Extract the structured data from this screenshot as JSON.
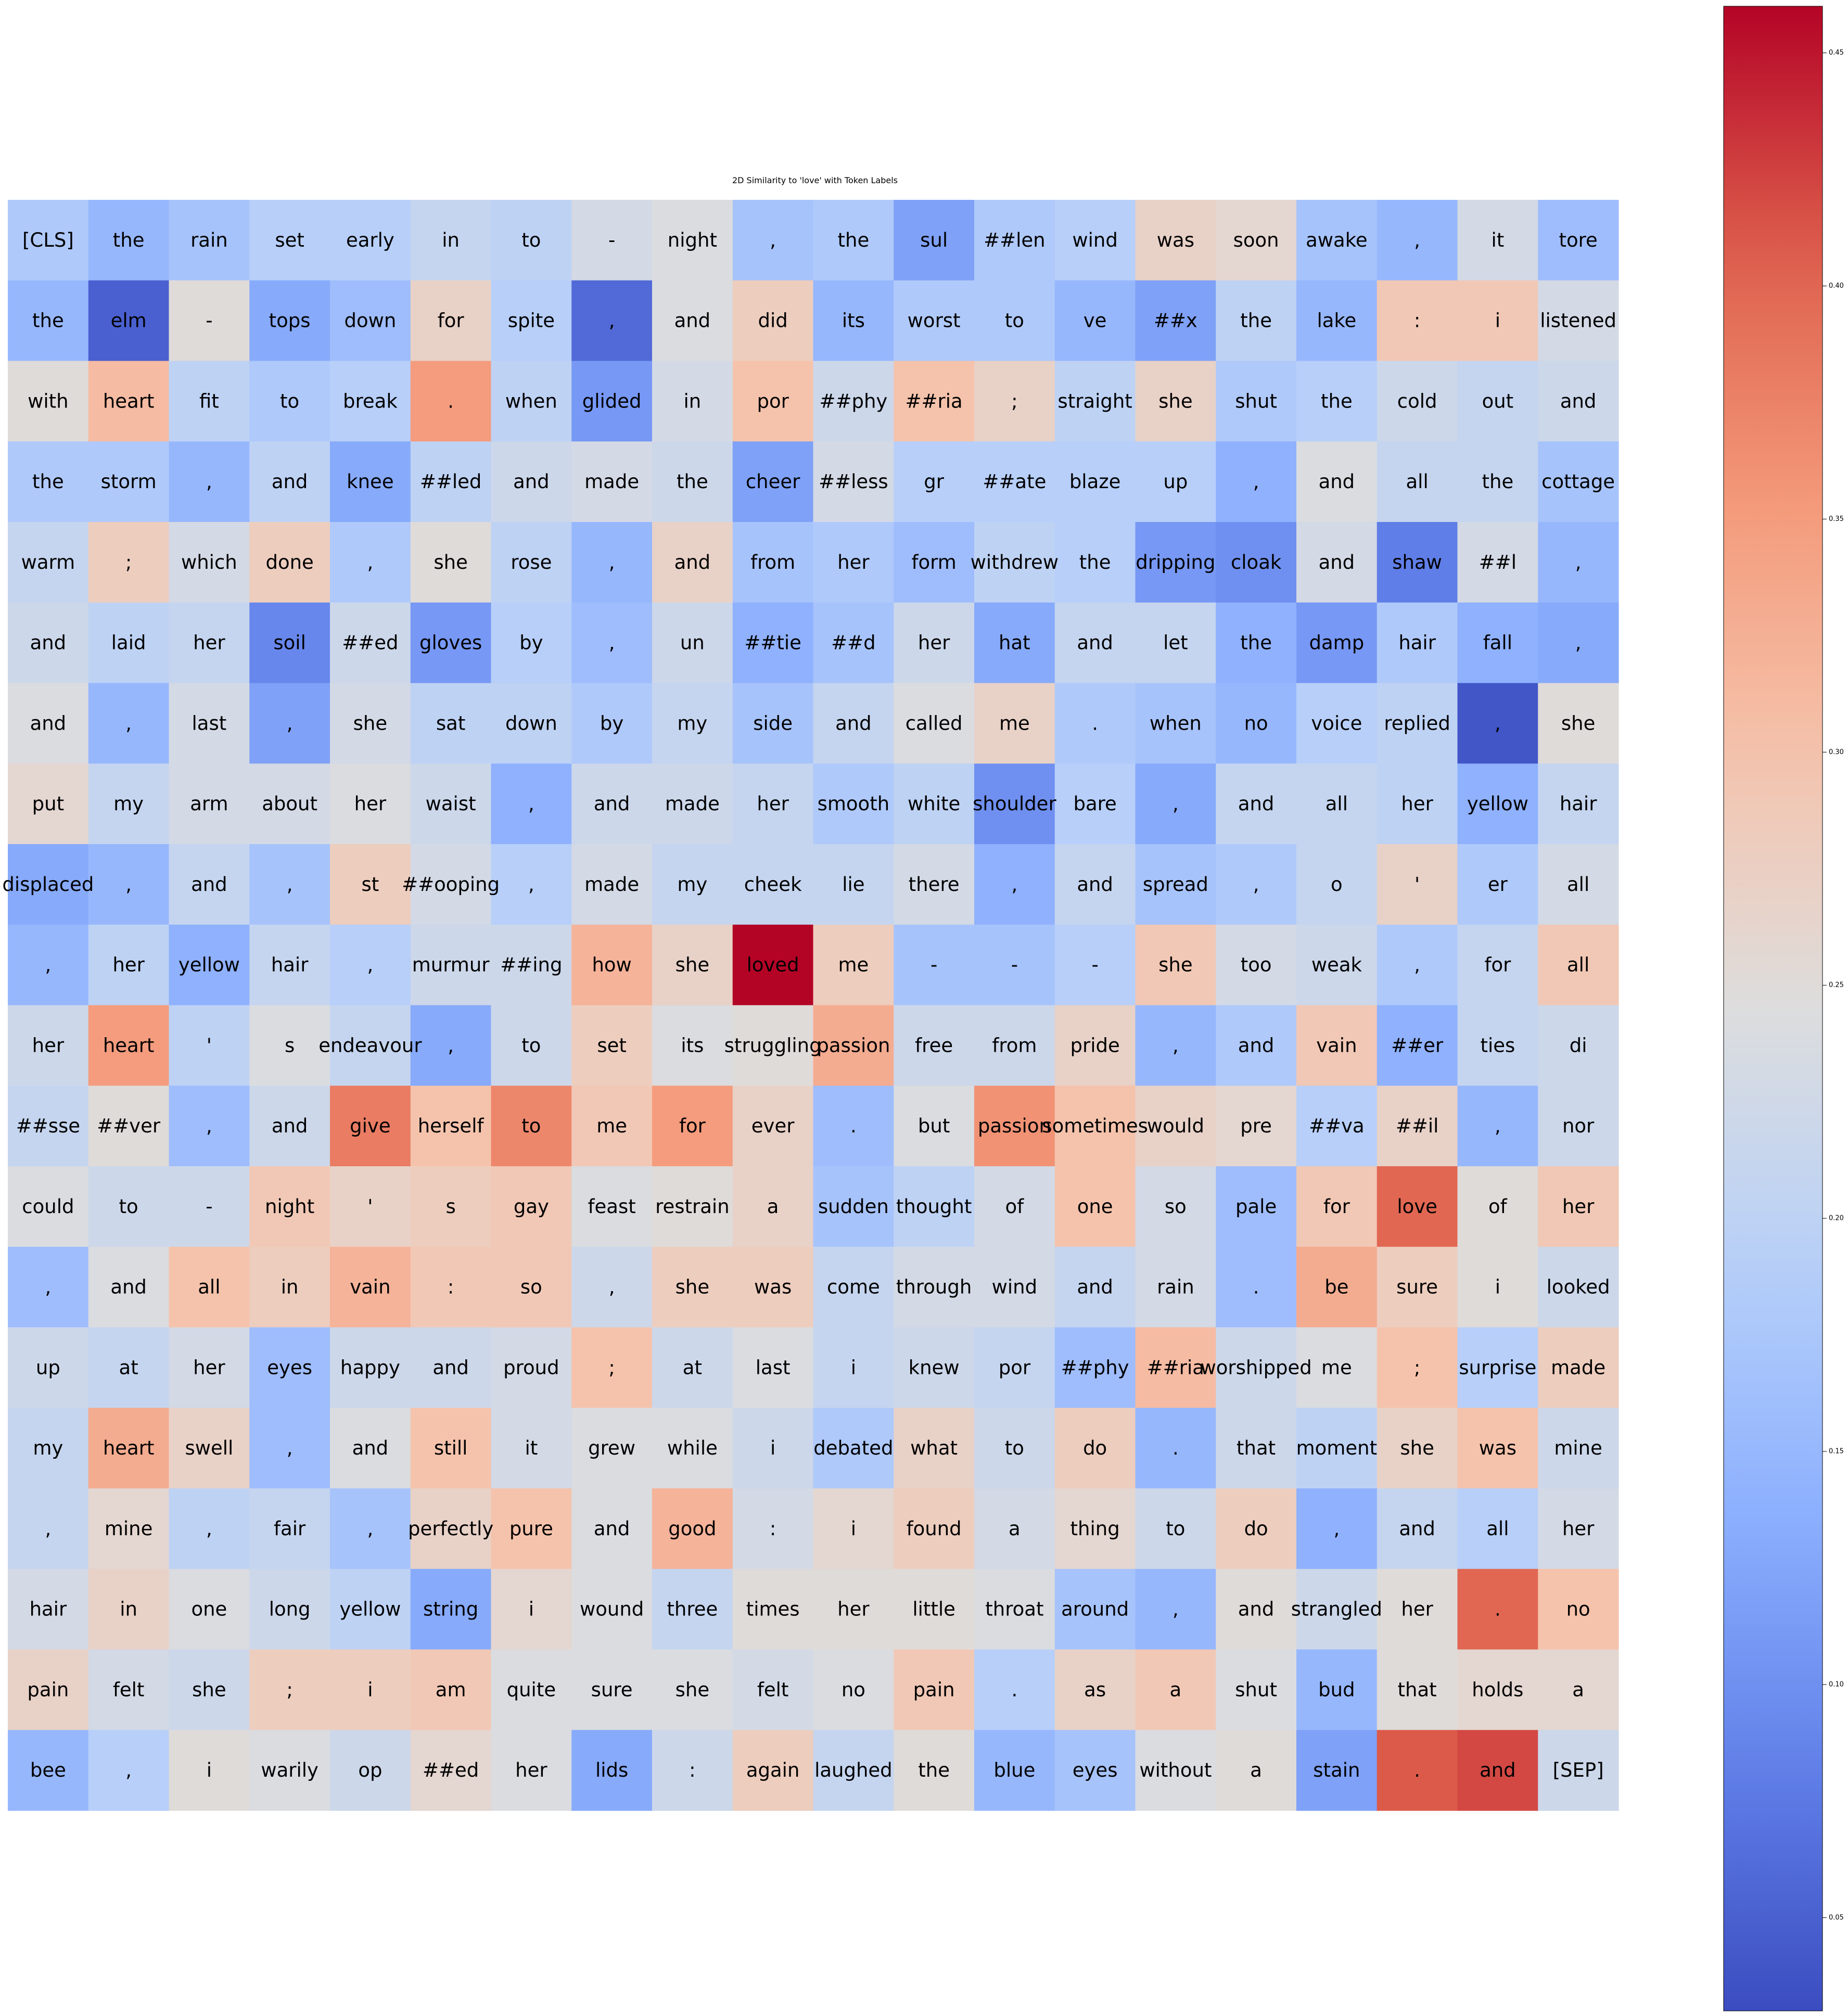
{
  "chart_data": {
    "type": "heatmap",
    "title": "2D Similarity to 'love' with Token Labels",
    "rows": 20,
    "cols": 20,
    "colormap": "coolwarm",
    "colorbar": {
      "vmin": 0.03,
      "vmax": 0.46,
      "ticks": [
        0.05,
        0.1,
        0.15,
        0.2,
        0.25,
        0.3,
        0.35,
        0.4,
        0.45
      ],
      "tick_labels": [
        "0.05",
        "0.10",
        "0.15",
        "0.20",
        "0.25",
        "0.30",
        "0.35",
        "0.40",
        "0.45"
      ]
    },
    "tokens": [
      [
        "[CLS]",
        "the",
        "rain",
        "set",
        "early",
        "in",
        "to",
        "-",
        "night",
        ",",
        "the",
        "sul",
        "##len",
        "wind",
        "was",
        "soon",
        "awake",
        ",",
        "it",
        "tore"
      ],
      [
        "the",
        "elm",
        "-",
        "tops",
        "down",
        "for",
        "spite",
        ",",
        "and",
        "did",
        "its",
        "worst",
        "to",
        "ve",
        "##x",
        "the",
        "lake",
        ":",
        "i",
        "listened"
      ],
      [
        "with",
        "heart",
        "fit",
        "to",
        "break",
        ".",
        "when",
        "glided",
        "in",
        "por",
        "##phy",
        "##ria",
        ";",
        "straight",
        "she",
        "shut",
        "the",
        "cold",
        "out",
        "and"
      ],
      [
        "the",
        "storm",
        ",",
        "and",
        "knee",
        "##led",
        "and",
        "made",
        "the",
        "cheer",
        "##less",
        "gr",
        "##ate",
        "blaze",
        "up",
        ",",
        "and",
        "all",
        "the",
        "cottage"
      ],
      [
        "warm",
        ";",
        "which",
        "done",
        ",",
        "she",
        "rose",
        ",",
        "and",
        "from",
        "her",
        "form",
        "withdrew",
        "the",
        "dripping",
        "cloak",
        "and",
        "shaw",
        "##l",
        ","
      ],
      [
        "and",
        "laid",
        "her",
        "soil",
        "##ed",
        "gloves",
        "by",
        ",",
        "un",
        "##tie",
        "##d",
        "her",
        "hat",
        "and",
        "let",
        "the",
        "damp",
        "hair",
        "fall",
        ","
      ],
      [
        "and",
        ",",
        "last",
        ",",
        "she",
        "sat",
        "down",
        "by",
        "my",
        "side",
        "and",
        "called",
        "me",
        ".",
        "when",
        "no",
        "voice",
        "replied",
        ",",
        "she"
      ],
      [
        "put",
        "my",
        "arm",
        "about",
        "her",
        "waist",
        ",",
        "and",
        "made",
        "her",
        "smooth",
        "white",
        "shoulder",
        "bare",
        ",",
        "and",
        "all",
        "her",
        "yellow",
        "hair"
      ],
      [
        "displaced",
        ",",
        "and",
        ",",
        "st",
        "##ooping",
        ",",
        "made",
        "my",
        "cheek",
        "lie",
        "there",
        ",",
        "and",
        "spread",
        ",",
        "o",
        "'",
        "er",
        "all"
      ],
      [
        ",",
        "her",
        "yellow",
        "hair",
        ",",
        "murmur",
        "##ing",
        "how",
        "she",
        "loved",
        "me",
        "-",
        "-",
        "-",
        "she",
        "too",
        "weak",
        ",",
        "for",
        "all"
      ],
      [
        "her",
        "heart",
        "'",
        "s",
        "endeavour",
        ",",
        "to",
        "set",
        "its",
        "struggling",
        "passion",
        "free",
        "from",
        "pride",
        ",",
        "and",
        "vain",
        "##er",
        "ties",
        "di"
      ],
      [
        "##sse",
        "##ver",
        ",",
        "and",
        "give",
        "herself",
        "to",
        "me",
        "for",
        "ever",
        ".",
        "but",
        "passion",
        "sometimes",
        "would",
        "pre",
        "##va",
        "##il",
        ",",
        "nor"
      ],
      [
        "could",
        "to",
        "-",
        "night",
        "'",
        "s",
        "gay",
        "feast",
        "restrain",
        "a",
        "sudden",
        "thought",
        "of",
        "one",
        "so",
        "pale",
        "for",
        "love",
        "of",
        "her"
      ],
      [
        ",",
        "and",
        "all",
        "in",
        "vain",
        ":",
        "so",
        ",",
        "she",
        "was",
        "come",
        "through",
        "wind",
        "and",
        "rain",
        ".",
        "be",
        "sure",
        "i",
        "looked"
      ],
      [
        "up",
        "at",
        "her",
        "eyes",
        "happy",
        "and",
        "proud",
        ";",
        "at",
        "last",
        "i",
        "knew",
        "por",
        "##phy",
        "##ria",
        "worshipped",
        "me",
        ";",
        "surprise",
        "made"
      ],
      [
        "my",
        "heart",
        "swell",
        ",",
        "and",
        "still",
        "it",
        "grew",
        "while",
        "i",
        "debated",
        "what",
        "to",
        "do",
        ".",
        "that",
        "moment",
        "she",
        "was",
        "mine"
      ],
      [
        ",",
        "mine",
        ",",
        "fair",
        ",",
        "perfectly",
        "pure",
        "and",
        "good",
        ":",
        "i",
        "found",
        "a",
        "thing",
        "to",
        "do",
        ",",
        "and",
        "all",
        "her"
      ],
      [
        "hair",
        "in",
        "one",
        "long",
        "yellow",
        "string",
        "i",
        "wound",
        "three",
        "times",
        "her",
        "little",
        "throat",
        "around",
        ",",
        "and",
        "strangled",
        "her",
        ".",
        "no"
      ],
      [
        "pain",
        "felt",
        "she",
        ";",
        "i",
        "am",
        "quite",
        "sure",
        "she",
        "felt",
        "no",
        "pain",
        ".",
        "as",
        "a",
        "shut",
        "bud",
        "that",
        "holds",
        "a"
      ],
      [
        "bee",
        ",",
        "i",
        "warily",
        "op",
        "##ed",
        "her",
        "lids",
        ":",
        "again",
        "laughed",
        "the",
        "blue",
        "eyes",
        "without",
        "a",
        "stain",
        ".",
        "and",
        "[SEP]"
      ]
    ],
    "values": [
      [
        0.18,
        0.15,
        0.17,
        0.19,
        0.19,
        0.21,
        0.2,
        0.23,
        0.24,
        0.17,
        0.18,
        0.12,
        0.18,
        0.19,
        0.27,
        0.26,
        0.17,
        0.15,
        0.23,
        0.16
      ],
      [
        0.15,
        0.05,
        0.25,
        0.13,
        0.16,
        0.27,
        0.19,
        0.06,
        0.24,
        0.28,
        0.15,
        0.18,
        0.18,
        0.15,
        0.12,
        0.2,
        0.15,
        0.29,
        0.29,
        0.23
      ],
      [
        0.25,
        0.31,
        0.2,
        0.18,
        0.19,
        0.35,
        0.2,
        0.11,
        0.23,
        0.3,
        0.22,
        0.3,
        0.27,
        0.2,
        0.27,
        0.18,
        0.19,
        0.22,
        0.21,
        0.22
      ],
      [
        0.18,
        0.18,
        0.15,
        0.2,
        0.13,
        0.2,
        0.22,
        0.23,
        0.22,
        0.12,
        0.23,
        0.19,
        0.19,
        0.19,
        0.19,
        0.14,
        0.24,
        0.21,
        0.21,
        0.17
      ],
      [
        0.21,
        0.28,
        0.23,
        0.28,
        0.18,
        0.25,
        0.2,
        0.15,
        0.27,
        0.17,
        0.18,
        0.16,
        0.2,
        0.19,
        0.11,
        0.1,
        0.23,
        0.08,
        0.23,
        0.15
      ],
      [
        0.22,
        0.2,
        0.21,
        0.09,
        0.22,
        0.11,
        0.19,
        0.16,
        0.22,
        0.14,
        0.17,
        0.22,
        0.13,
        0.21,
        0.21,
        0.14,
        0.11,
        0.18,
        0.14,
        0.13
      ],
      [
        0.24,
        0.15,
        0.23,
        0.12,
        0.23,
        0.2,
        0.2,
        0.18,
        0.21,
        0.17,
        0.21,
        0.24,
        0.27,
        0.18,
        0.17,
        0.15,
        0.19,
        0.2,
        0.04,
        0.25
      ],
      [
        0.26,
        0.21,
        0.23,
        0.23,
        0.24,
        0.22,
        0.14,
        0.22,
        0.22,
        0.21,
        0.18,
        0.2,
        0.1,
        0.19,
        0.13,
        0.21,
        0.21,
        0.2,
        0.14,
        0.21
      ],
      [
        0.13,
        0.15,
        0.21,
        0.17,
        0.28,
        0.23,
        0.19,
        0.23,
        0.21,
        0.21,
        0.21,
        0.23,
        0.14,
        0.21,
        0.17,
        0.18,
        0.21,
        0.27,
        0.18,
        0.23
      ],
      [
        0.15,
        0.2,
        0.14,
        0.21,
        0.19,
        0.22,
        0.22,
        0.32,
        0.27,
        0.46,
        0.28,
        0.17,
        0.17,
        0.19,
        0.29,
        0.23,
        0.22,
        0.18,
        0.21,
        0.29
      ],
      [
        0.22,
        0.35,
        0.2,
        0.24,
        0.21,
        0.13,
        0.22,
        0.28,
        0.24,
        0.25,
        0.33,
        0.22,
        0.22,
        0.27,
        0.15,
        0.18,
        0.29,
        0.14,
        0.21,
        0.22
      ],
      [
        0.21,
        0.25,
        0.16,
        0.22,
        0.38,
        0.3,
        0.37,
        0.29,
        0.35,
        0.27,
        0.16,
        0.24,
        0.36,
        0.3,
        0.27,
        0.26,
        0.19,
        0.27,
        0.15,
        0.22
      ],
      [
        0.24,
        0.22,
        0.22,
        0.29,
        0.27,
        0.28,
        0.29,
        0.24,
        0.25,
        0.27,
        0.17,
        0.2,
        0.23,
        0.3,
        0.23,
        0.16,
        0.29,
        0.4,
        0.25,
        0.29
      ],
      [
        0.16,
        0.24,
        0.3,
        0.28,
        0.32,
        0.29,
        0.29,
        0.22,
        0.28,
        0.28,
        0.21,
        0.23,
        0.23,
        0.21,
        0.23,
        0.16,
        0.33,
        0.28,
        0.25,
        0.22
      ],
      [
        0.22,
        0.21,
        0.23,
        0.16,
        0.22,
        0.22,
        0.23,
        0.3,
        0.22,
        0.24,
        0.21,
        0.22,
        0.21,
        0.16,
        0.31,
        0.22,
        0.24,
        0.3,
        0.19,
        0.28
      ],
      [
        0.21,
        0.33,
        0.27,
        0.16,
        0.24,
        0.3,
        0.23,
        0.24,
        0.24,
        0.22,
        0.18,
        0.27,
        0.22,
        0.28,
        0.15,
        0.22,
        0.2,
        0.27,
        0.3,
        0.22
      ],
      [
        0.21,
        0.26,
        0.2,
        0.21,
        0.17,
        0.27,
        0.3,
        0.24,
        0.32,
        0.23,
        0.26,
        0.28,
        0.23,
        0.26,
        0.22,
        0.28,
        0.14,
        0.21,
        0.19,
        0.23
      ],
      [
        0.23,
        0.27,
        0.24,
        0.22,
        0.2,
        0.13,
        0.26,
        0.24,
        0.21,
        0.25,
        0.25,
        0.25,
        0.24,
        0.17,
        0.15,
        0.25,
        0.22,
        0.25,
        0.4,
        0.3
      ],
      [
        0.27,
        0.23,
        0.22,
        0.28,
        0.28,
        0.29,
        0.24,
        0.24,
        0.24,
        0.23,
        0.24,
        0.29,
        0.19,
        0.27,
        0.29,
        0.24,
        0.15,
        0.25,
        0.26,
        0.26
      ],
      [
        0.15,
        0.19,
        0.25,
        0.24,
        0.22,
        0.26,
        0.24,
        0.13,
        0.22,
        0.28,
        0.21,
        0.25,
        0.15,
        0.17,
        0.24,
        0.25,
        0.12,
        0.41,
        0.42,
        0.22
      ]
    ]
  }
}
